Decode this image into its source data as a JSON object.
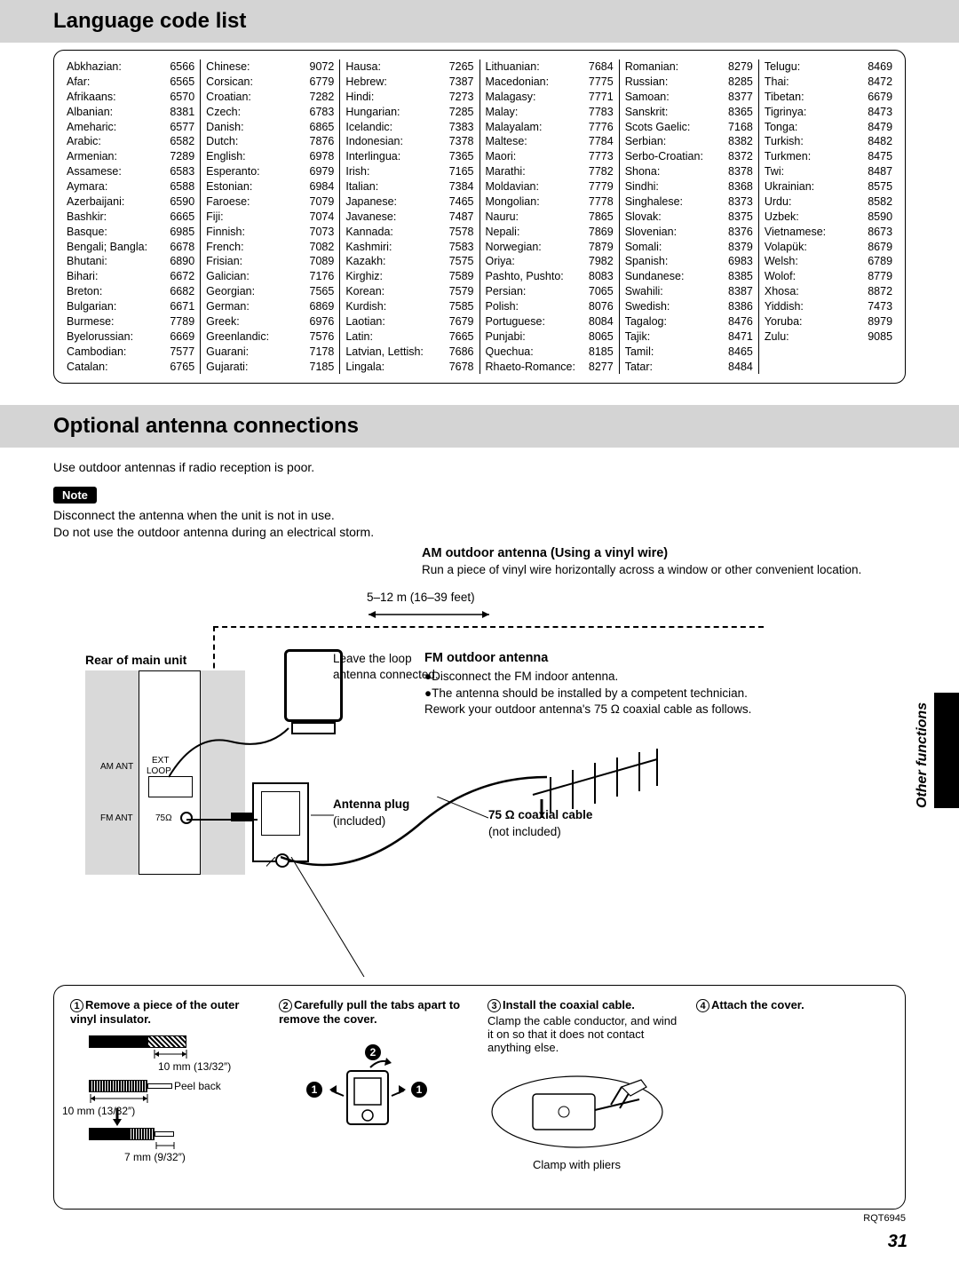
{
  "headers": {
    "language": "Language code list",
    "antenna": "Optional antenna connections"
  },
  "languages": [
    [
      [
        "Abkhazian:",
        "6566"
      ],
      [
        "Afar:",
        "6565"
      ],
      [
        "Afrikaans:",
        "6570"
      ],
      [
        "Albanian:",
        "8381"
      ],
      [
        "Ameharic:",
        "6577"
      ],
      [
        "Arabic:",
        "6582"
      ],
      [
        "Armenian:",
        "7289"
      ],
      [
        "Assamese:",
        "6583"
      ],
      [
        "Aymara:",
        "6588"
      ],
      [
        "Azerbaijani:",
        "6590"
      ],
      [
        "Bashkir:",
        "6665"
      ],
      [
        "Basque:",
        "6985"
      ],
      [
        "Bengali; Bangla:",
        "6678"
      ],
      [
        "Bhutani:",
        "6890"
      ],
      [
        "Bihari:",
        "6672"
      ],
      [
        "Breton:",
        "6682"
      ],
      [
        "Bulgarian:",
        "6671"
      ],
      [
        "Burmese:",
        "7789"
      ],
      [
        "Byelorussian:",
        "6669"
      ],
      [
        "Cambodian:",
        "7577"
      ],
      [
        "Catalan:",
        "6765"
      ]
    ],
    [
      [
        "Chinese:",
        "9072"
      ],
      [
        "Corsican:",
        "6779"
      ],
      [
        "Croatian:",
        "7282"
      ],
      [
        "Czech:",
        "6783"
      ],
      [
        "Danish:",
        "6865"
      ],
      [
        "Dutch:",
        "7876"
      ],
      [
        "English:",
        "6978"
      ],
      [
        "Esperanto:",
        "6979"
      ],
      [
        "Estonian:",
        "6984"
      ],
      [
        "Faroese:",
        "7079"
      ],
      [
        "Fiji:",
        "7074"
      ],
      [
        "Finnish:",
        "7073"
      ],
      [
        "French:",
        "7082"
      ],
      [
        "Frisian:",
        "7089"
      ],
      [
        "Galician:",
        "7176"
      ],
      [
        "Georgian:",
        "7565"
      ],
      [
        "German:",
        "6869"
      ],
      [
        "Greek:",
        "6976"
      ],
      [
        "Greenlandic:",
        "7576"
      ],
      [
        "Guarani:",
        "7178"
      ],
      [
        "Gujarati:",
        "7185"
      ]
    ],
    [
      [
        "Hausa:",
        "7265"
      ],
      [
        "Hebrew:",
        "7387"
      ],
      [
        "Hindi:",
        "7273"
      ],
      [
        "Hungarian:",
        "7285"
      ],
      [
        "Icelandic:",
        "7383"
      ],
      [
        "Indonesian:",
        "7378"
      ],
      [
        "Interlingua:",
        "7365"
      ],
      [
        "Irish:",
        "7165"
      ],
      [
        "Italian:",
        "7384"
      ],
      [
        "Japanese:",
        "7465"
      ],
      [
        "Javanese:",
        "7487"
      ],
      [
        "Kannada:",
        "7578"
      ],
      [
        "Kashmiri:",
        "7583"
      ],
      [
        "Kazakh:",
        "7575"
      ],
      [
        "Kirghiz:",
        "7589"
      ],
      [
        "Korean:",
        "7579"
      ],
      [
        "Kurdish:",
        "7585"
      ],
      [
        "Laotian:",
        "7679"
      ],
      [
        "Latin:",
        "7665"
      ],
      [
        "Latvian, Lettish:",
        "7686"
      ],
      [
        "Lingala:",
        "7678"
      ]
    ],
    [
      [
        "Lithuanian:",
        "7684"
      ],
      [
        "Macedonian:",
        "7775"
      ],
      [
        "Malagasy:",
        "7771"
      ],
      [
        "Malay:",
        "7783"
      ],
      [
        "Malayalam:",
        "7776"
      ],
      [
        "Maltese:",
        "7784"
      ],
      [
        "Maori:",
        "7773"
      ],
      [
        "Marathi:",
        "7782"
      ],
      [
        "Moldavian:",
        "7779"
      ],
      [
        "Mongolian:",
        "7778"
      ],
      [
        "Nauru:",
        "7865"
      ],
      [
        "Nepali:",
        "7869"
      ],
      [
        "Norwegian:",
        "7879"
      ],
      [
        "Oriya:",
        "7982"
      ],
      [
        "Pashto, Pushto:",
        "8083"
      ],
      [
        "Persian:",
        "7065"
      ],
      [
        "Polish:",
        "8076"
      ],
      [
        "Portuguese:",
        "8084"
      ],
      [
        "Punjabi:",
        "8065"
      ],
      [
        "Quechua:",
        "8185"
      ],
      [
        "Rhaeto-Romance:",
        "8277"
      ]
    ],
    [
      [
        "Romanian:",
        "8279"
      ],
      [
        "Russian:",
        "8285"
      ],
      [
        "Samoan:",
        "8377"
      ],
      [
        "Sanskrit:",
        "8365"
      ],
      [
        "Scots Gaelic:",
        "7168"
      ],
      [
        "Serbian:",
        "8382"
      ],
      [
        "Serbo-Croatian:",
        "8372"
      ],
      [
        "Shona:",
        "8378"
      ],
      [
        "Sindhi:",
        "8368"
      ],
      [
        "Singhalese:",
        "8373"
      ],
      [
        "Slovak:",
        "8375"
      ],
      [
        "Slovenian:",
        "8376"
      ],
      [
        "Somali:",
        "8379"
      ],
      [
        "Spanish:",
        "6983"
      ],
      [
        "Sundanese:",
        "8385"
      ],
      [
        "Swahili:",
        "8387"
      ],
      [
        "Swedish:",
        "8386"
      ],
      [
        "Tagalog:",
        "8476"
      ],
      [
        "Tajik:",
        "8471"
      ],
      [
        "Tamil:",
        "8465"
      ],
      [
        "Tatar:",
        "8484"
      ]
    ],
    [
      [
        "Telugu:",
        "8469"
      ],
      [
        "Thai:",
        "8472"
      ],
      [
        "Tibetan:",
        "6679"
      ],
      [
        "Tigrinya:",
        "8473"
      ],
      [
        "Tonga:",
        "8479"
      ],
      [
        "Turkish:",
        "8482"
      ],
      [
        "Turkmen:",
        "8475"
      ],
      [
        "Twi:",
        "8487"
      ],
      [
        "Ukrainian:",
        "8575"
      ],
      [
        "Urdu:",
        "8582"
      ],
      [
        "Uzbek:",
        "8590"
      ],
      [
        "Vietnamese:",
        "8673"
      ],
      [
        "Volapük:",
        "8679"
      ],
      [
        "Welsh:",
        "6789"
      ],
      [
        "Wolof:",
        "8779"
      ],
      [
        "Xhosa:",
        "8872"
      ],
      [
        "Yiddish:",
        "7473"
      ],
      [
        "Yoruba:",
        "8979"
      ],
      [
        "Zulu:",
        "9085"
      ]
    ]
  ],
  "intro": "Use outdoor antennas if radio reception is poor.",
  "note_label": "Note",
  "note_lines": [
    "Disconnect the antenna when the unit is not in use.",
    "Do not use the outdoor antenna during an electrical storm."
  ],
  "am": {
    "title": "AM outdoor antenna (Using a vinyl wire)",
    "text": "Run a piece of vinyl wire horizontally across a window or other convenient location.",
    "len": "5–12 m (16–39 feet)"
  },
  "diagram": {
    "rear": "Rear of main unit",
    "leave_loop": "Leave the loop antenna connected.",
    "am_ant": "AM ANT",
    "ext": "EXT",
    "loop": "LOOP",
    "fm_ant": "FM ANT",
    "ohm": "75Ω",
    "plug": "Antenna plug",
    "plug_inc": "(included)",
    "coax": "75 Ω coaxial cable",
    "coax_inc": "(not included)"
  },
  "fm": {
    "title": "FM outdoor antenna",
    "b1": "Disconnect the FM indoor antenna.",
    "b2": "The antenna should be installed by a competent technician.",
    "b3": "Rework your outdoor antenna's 75 Ω coaxial cable as follows."
  },
  "steps": [
    {
      "num": "①",
      "title": "Remove a piece of the outer vinyl insulator.",
      "body": "",
      "notes": [
        "10 mm (13/32″)",
        "Peel back",
        "10 mm (13/32″)",
        "7 mm (9/32″)"
      ]
    },
    {
      "num": "②",
      "title": "Carefully pull the tabs apart to remove the cover.",
      "body": ""
    },
    {
      "num": "③",
      "title": "Install the coaxial cable.",
      "body": "Clamp the cable conductor, and wind it on so that it does not contact anything else.",
      "notes": [
        "Clamp with pliers"
      ]
    },
    {
      "num": "④",
      "title": "Attach the cover.",
      "body": ""
    }
  ],
  "side_text": "Other functions",
  "footer": "RQT6945",
  "page": "31",
  "colors": {
    "header_bg": "#d4d4d4",
    "text": "#000000",
    "bg": "#ffffff"
  }
}
